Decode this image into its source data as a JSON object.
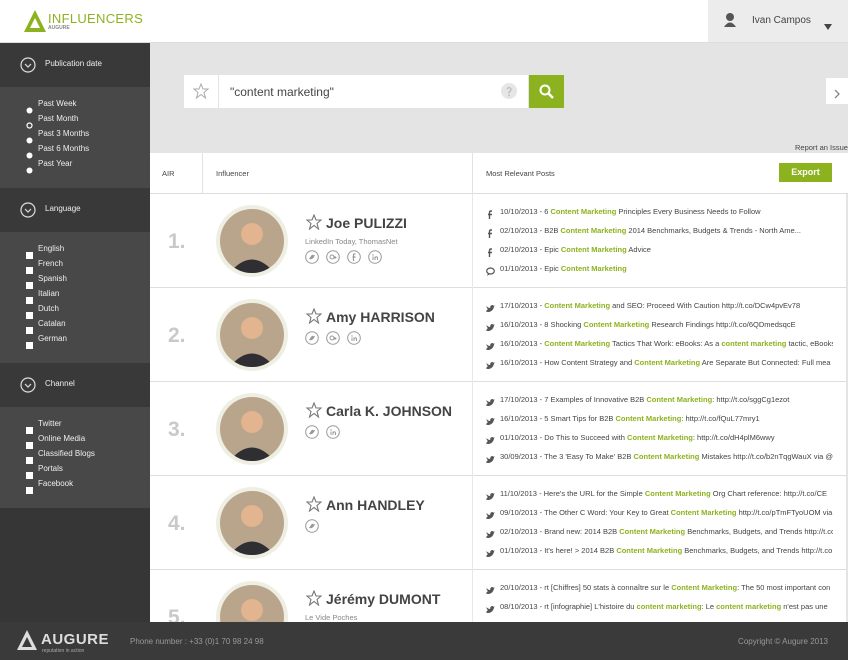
{
  "header": {
    "logo_text": "INFLUENCERS",
    "logo_sub": "AUGURE",
    "user": "Ivan Campos"
  },
  "sidebar": {
    "sections": [
      {
        "title": "Publication date",
        "kind": "radio",
        "selected": 1,
        "options": [
          "Past Week",
          "Past Month",
          "Past 3 Months",
          "Past 6 Months",
          "Past Year"
        ]
      },
      {
        "title": "Language",
        "kind": "checkbox",
        "options": [
          "English",
          "French",
          "Spanish",
          "Italian",
          "Dutch",
          "Catalan",
          "German"
        ]
      },
      {
        "title": "Channel",
        "kind": "checkbox",
        "options": [
          "Twitter",
          "Online Media",
          "Classified Blogs",
          "Portals",
          "Facebook"
        ]
      }
    ]
  },
  "search": {
    "query": "\"content marketing\"",
    "report": "Report an Issue"
  },
  "table": {
    "columns": [
      "AIR",
      "Influencer",
      "Most Relevant Posts"
    ],
    "export": "Export",
    "rows": [
      {
        "rank": "1.",
        "name": "Joe PULIZZI",
        "subtitle": "LinkedIn Today, ThomasNet",
        "social": [
          "twitter",
          "google-plus",
          "facebook",
          "linkedin"
        ],
        "posts": [
          {
            "channel": "facebook",
            "segments": [
              "10/10/2013 - 6 ",
              "Content Marketing",
              " Principles Every Business Needs to Follow"
            ]
          },
          {
            "channel": "facebook",
            "segments": [
              "02/10/2013 - B2B ",
              "Content Marketing",
              " 2014 Benchmarks, Budgets & Trends - North Ame..."
            ]
          },
          {
            "channel": "facebook",
            "segments": [
              "02/10/2013 - Epic ",
              "Content Marketing",
              " Advice"
            ]
          },
          {
            "channel": "comment",
            "segments": [
              "01/10/2013 - Epic ",
              "Content Marketing"
            ]
          }
        ]
      },
      {
        "rank": "2.",
        "name": "Amy HARRISON",
        "social": [
          "twitter",
          "google-plus",
          "linkedin"
        ],
        "posts": [
          {
            "channel": "twitter",
            "segments": [
              "17/10/2013 - ",
              "Content Marketing",
              " and SEO: Proceed With Caution http://t.co/DCw4pvEv78"
            ]
          },
          {
            "channel": "twitter",
            "segments": [
              "16/10/2013 - 8 Shocking ",
              "Content Marketing",
              " Research Findings http://t.co/6QDmedsqcE"
            ]
          },
          {
            "channel": "twitter",
            "segments": [
              "16/10/2013 - ",
              "Content Marketing",
              " Tactics That Work: eBooks: As a ",
              "content marketing",
              " tactic, eBooks"
            ]
          },
          {
            "channel": "twitter",
            "segments": [
              "16/10/2013 - How Content Strategy and ",
              "Content Marketing",
              " Are Separate But Connected: Full mea"
            ]
          }
        ]
      },
      {
        "rank": "3.",
        "name": "Carla K. JOHNSON",
        "social": [
          "twitter",
          "linkedin"
        ],
        "posts": [
          {
            "channel": "twitter",
            "segments": [
              "17/10/2013 - 7 Examples of Innovative B2B ",
              "Content Marketing",
              ": http://t.co/sggCg1ezot"
            ]
          },
          {
            "channel": "twitter",
            "segments": [
              "16/10/2013 - 5 Smart Tips for B2B ",
              "Content Marketing",
              ": http://t.co/fQuL77mry1"
            ]
          },
          {
            "channel": "twitter",
            "segments": [
              "01/10/2013 - Do This to Succeed with ",
              "Content Marketing",
              ": http://t.co/dH4plM6wwy"
            ]
          },
          {
            "channel": "twitter",
            "segments": [
              "30/09/2013 - The 3 'Easy To Make' B2B ",
              "Content Marketing",
              " Mistakes http://t.co/b2nTqgWauX via @"
            ]
          }
        ]
      },
      {
        "rank": "4.",
        "name": "Ann HANDLEY",
        "social": [
          "twitter"
        ],
        "posts": [
          {
            "channel": "twitter",
            "segments": [
              "11/10/2013 - Here's the URL for the Simple ",
              "Content Marketing",
              " Org Chart reference: http://t.co/CE"
            ]
          },
          {
            "channel": "twitter",
            "segments": [
              "09/10/2013 - The Other C Word: Your Key to Great ",
              "Content Marketing",
              " http://t.co/pTmFTyoUOM via"
            ]
          },
          {
            "channel": "twitter",
            "segments": [
              "02/10/2013 - Brand new: 2014 B2B ",
              "Content Marketing",
              " Benchmarks, Budgets, and Trends http://t.co"
            ]
          },
          {
            "channel": "twitter",
            "segments": [
              "01/10/2013 - It's here! > 2014 B2B ",
              "Content Marketing",
              " Benchmarks, Budgets, and Trends http://t.co"
            ]
          }
        ]
      },
      {
        "rank": "5.",
        "name": "Jérémy DUMONT",
        "subtitle": "Le Vide Poches",
        "social": [],
        "posts": [
          {
            "channel": "twitter",
            "segments": [
              "20/10/2013 - rt [Chiffres] 50 stats à connaître sur le ",
              "Content Marketing",
              ": The 50 most important con"
            ]
          },
          {
            "channel": "twitter",
            "segments": [
              "08/10/2013 - rt [infographie] L'histoire du ",
              "content marketing",
              ": Le ",
              "content marketing",
              " n'est pas une"
            ]
          }
        ]
      }
    ]
  },
  "footer": {
    "logo": "AUGURE",
    "tagline": "reputation in action",
    "phone": "Phone number : +33 (0)1 70 98 24 98",
    "copyright": "Copyright © Augure 2013"
  }
}
